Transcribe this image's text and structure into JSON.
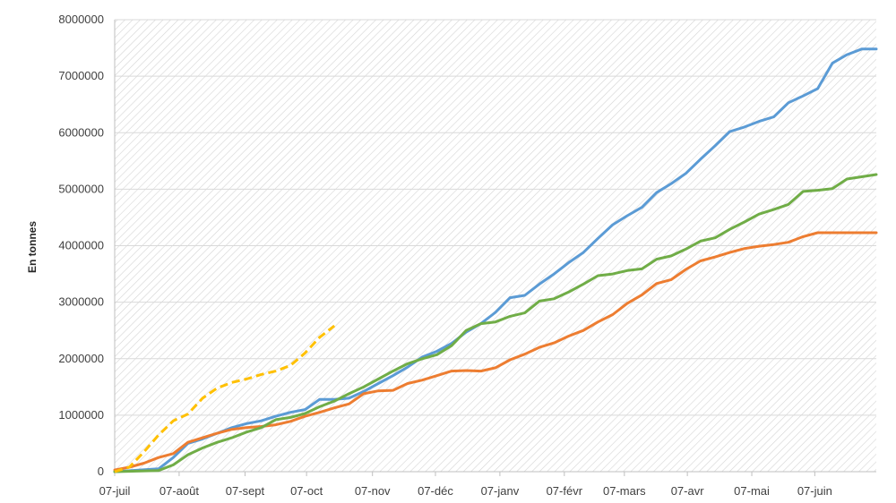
{
  "chart_data": {
    "type": "line",
    "title": "",
    "xlabel": "",
    "ylabel": "En tonnes",
    "ylim": [
      0,
      8000000
    ],
    "y_ticks": [
      0,
      1000000,
      2000000,
      3000000,
      4000000,
      5000000,
      6000000,
      7000000,
      8000000
    ],
    "x_domain": [
      0,
      52
    ],
    "x_ticks": [
      {
        "x": 0,
        "label": "07-juil"
      },
      {
        "x": 4.4,
        "label": "07-août"
      },
      {
        "x": 8.9,
        "label": "07-sept"
      },
      {
        "x": 13.1,
        "label": "07-oct"
      },
      {
        "x": 17.6,
        "label": "07-nov"
      },
      {
        "x": 21.9,
        "label": "07-déc"
      },
      {
        "x": 26.3,
        "label": "07-janv"
      },
      {
        "x": 30.7,
        "label": "07-févr"
      },
      {
        "x": 34.8,
        "label": "07-mars"
      },
      {
        "x": 39.1,
        "label": "07-avr"
      },
      {
        "x": 43.5,
        "label": "07-mai"
      },
      {
        "x": 47.8,
        "label": "07-juin"
      }
    ],
    "grid": true,
    "background_pattern": "diagonal-hatch",
    "legend": "none",
    "series": [
      {
        "color": "#5b9bd5",
        "dash": false,
        "points": [
          [
            0,
            0
          ],
          [
            3,
            50000
          ],
          [
            4,
            250000
          ],
          [
            5,
            500000
          ],
          [
            6,
            580000
          ],
          [
            7,
            680000
          ],
          [
            8,
            780000
          ],
          [
            9,
            850000
          ],
          [
            10,
            900000
          ],
          [
            11,
            980000
          ],
          [
            12,
            1050000
          ],
          [
            13,
            1100000
          ],
          [
            14,
            1280000
          ],
          [
            15,
            1280000
          ],
          [
            16,
            1300000
          ],
          [
            17,
            1420000
          ],
          [
            18,
            1560000
          ],
          [
            19,
            1700000
          ],
          [
            20,
            1850000
          ],
          [
            21,
            2030000
          ],
          [
            22,
            2130000
          ],
          [
            23,
            2270000
          ],
          [
            24,
            2470000
          ],
          [
            25,
            2620000
          ],
          [
            26,
            2820000
          ],
          [
            27,
            3080000
          ],
          [
            28,
            3120000
          ],
          [
            29,
            3320000
          ],
          [
            30,
            3500000
          ],
          [
            31,
            3700000
          ],
          [
            32,
            3880000
          ],
          [
            33,
            4130000
          ],
          [
            34,
            4370000
          ],
          [
            35,
            4530000
          ],
          [
            36,
            4680000
          ],
          [
            37,
            4940000
          ],
          [
            38,
            5100000
          ],
          [
            39,
            5280000
          ],
          [
            40,
            5530000
          ],
          [
            41,
            5770000
          ],
          [
            42,
            6020000
          ],
          [
            43,
            6100000
          ],
          [
            44,
            6200000
          ],
          [
            45,
            6280000
          ],
          [
            46,
            6530000
          ],
          [
            47,
            6650000
          ],
          [
            48,
            6780000
          ],
          [
            49,
            7230000
          ],
          [
            50,
            7380000
          ],
          [
            51,
            7480000
          ],
          [
            52,
            7480000
          ]
        ]
      },
      {
        "color": "#ed7d31",
        "dash": false,
        "points": [
          [
            0,
            30000
          ],
          [
            1,
            80000
          ],
          [
            2,
            150000
          ],
          [
            3,
            250000
          ],
          [
            4,
            320000
          ],
          [
            5,
            520000
          ],
          [
            6,
            600000
          ],
          [
            7,
            680000
          ],
          [
            8,
            750000
          ],
          [
            9,
            780000
          ],
          [
            10,
            800000
          ],
          [
            11,
            830000
          ],
          [
            12,
            890000
          ],
          [
            13,
            980000
          ],
          [
            14,
            1050000
          ],
          [
            15,
            1130000
          ],
          [
            16,
            1200000
          ],
          [
            17,
            1380000
          ],
          [
            18,
            1430000
          ],
          [
            19,
            1440000
          ],
          [
            20,
            1560000
          ],
          [
            21,
            1620000
          ],
          [
            22,
            1700000
          ],
          [
            23,
            1780000
          ],
          [
            24,
            1790000
          ],
          [
            25,
            1780000
          ],
          [
            26,
            1840000
          ],
          [
            27,
            1980000
          ],
          [
            28,
            2080000
          ],
          [
            29,
            2200000
          ],
          [
            30,
            2280000
          ],
          [
            31,
            2400000
          ],
          [
            32,
            2500000
          ],
          [
            33,
            2650000
          ],
          [
            34,
            2780000
          ],
          [
            35,
            2980000
          ],
          [
            36,
            3130000
          ],
          [
            37,
            3330000
          ],
          [
            38,
            3400000
          ],
          [
            39,
            3580000
          ],
          [
            40,
            3730000
          ],
          [
            41,
            3800000
          ],
          [
            42,
            3880000
          ],
          [
            43,
            3950000
          ],
          [
            44,
            3990000
          ],
          [
            45,
            4020000
          ],
          [
            46,
            4060000
          ],
          [
            47,
            4160000
          ],
          [
            48,
            4230000
          ],
          [
            49,
            4230000
          ],
          [
            50,
            4230000
          ],
          [
            51,
            4230000
          ],
          [
            52,
            4230000
          ]
        ]
      },
      {
        "color": "#70ad47",
        "dash": false,
        "points": [
          [
            0,
            0
          ],
          [
            3,
            20000
          ],
          [
            4,
            120000
          ],
          [
            5,
            300000
          ],
          [
            6,
            420000
          ],
          [
            7,
            520000
          ],
          [
            8,
            600000
          ],
          [
            9,
            700000
          ],
          [
            10,
            780000
          ],
          [
            11,
            920000
          ],
          [
            12,
            960000
          ],
          [
            13,
            1030000
          ],
          [
            14,
            1150000
          ],
          [
            15,
            1250000
          ],
          [
            16,
            1380000
          ],
          [
            17,
            1500000
          ],
          [
            18,
            1640000
          ],
          [
            19,
            1780000
          ],
          [
            20,
            1910000
          ],
          [
            21,
            2000000
          ],
          [
            22,
            2070000
          ],
          [
            23,
            2230000
          ],
          [
            24,
            2500000
          ],
          [
            25,
            2620000
          ],
          [
            26,
            2650000
          ],
          [
            27,
            2750000
          ],
          [
            28,
            2810000
          ],
          [
            29,
            3020000
          ],
          [
            30,
            3060000
          ],
          [
            31,
            3180000
          ],
          [
            32,
            3320000
          ],
          [
            33,
            3470000
          ],
          [
            34,
            3500000
          ],
          [
            35,
            3560000
          ],
          [
            36,
            3590000
          ],
          [
            37,
            3760000
          ],
          [
            38,
            3820000
          ],
          [
            39,
            3940000
          ],
          [
            40,
            4080000
          ],
          [
            41,
            4140000
          ],
          [
            42,
            4290000
          ],
          [
            43,
            4420000
          ],
          [
            44,
            4560000
          ],
          [
            45,
            4640000
          ],
          [
            46,
            4730000
          ],
          [
            47,
            4960000
          ],
          [
            48,
            4980000
          ],
          [
            49,
            5010000
          ],
          [
            50,
            5180000
          ],
          [
            51,
            5220000
          ],
          [
            52,
            5260000
          ]
        ]
      },
      {
        "color": "#ffc000",
        "dash": true,
        "points": [
          [
            0,
            0
          ],
          [
            1,
            80000
          ],
          [
            2,
            350000
          ],
          [
            3,
            650000
          ],
          [
            4,
            900000
          ],
          [
            5,
            1020000
          ],
          [
            6,
            1300000
          ],
          [
            7,
            1480000
          ],
          [
            8,
            1580000
          ],
          [
            9,
            1640000
          ],
          [
            10,
            1720000
          ],
          [
            11,
            1780000
          ],
          [
            12,
            1880000
          ],
          [
            13,
            2100000
          ],
          [
            14,
            2380000
          ],
          [
            15,
            2580000
          ]
        ]
      }
    ]
  }
}
